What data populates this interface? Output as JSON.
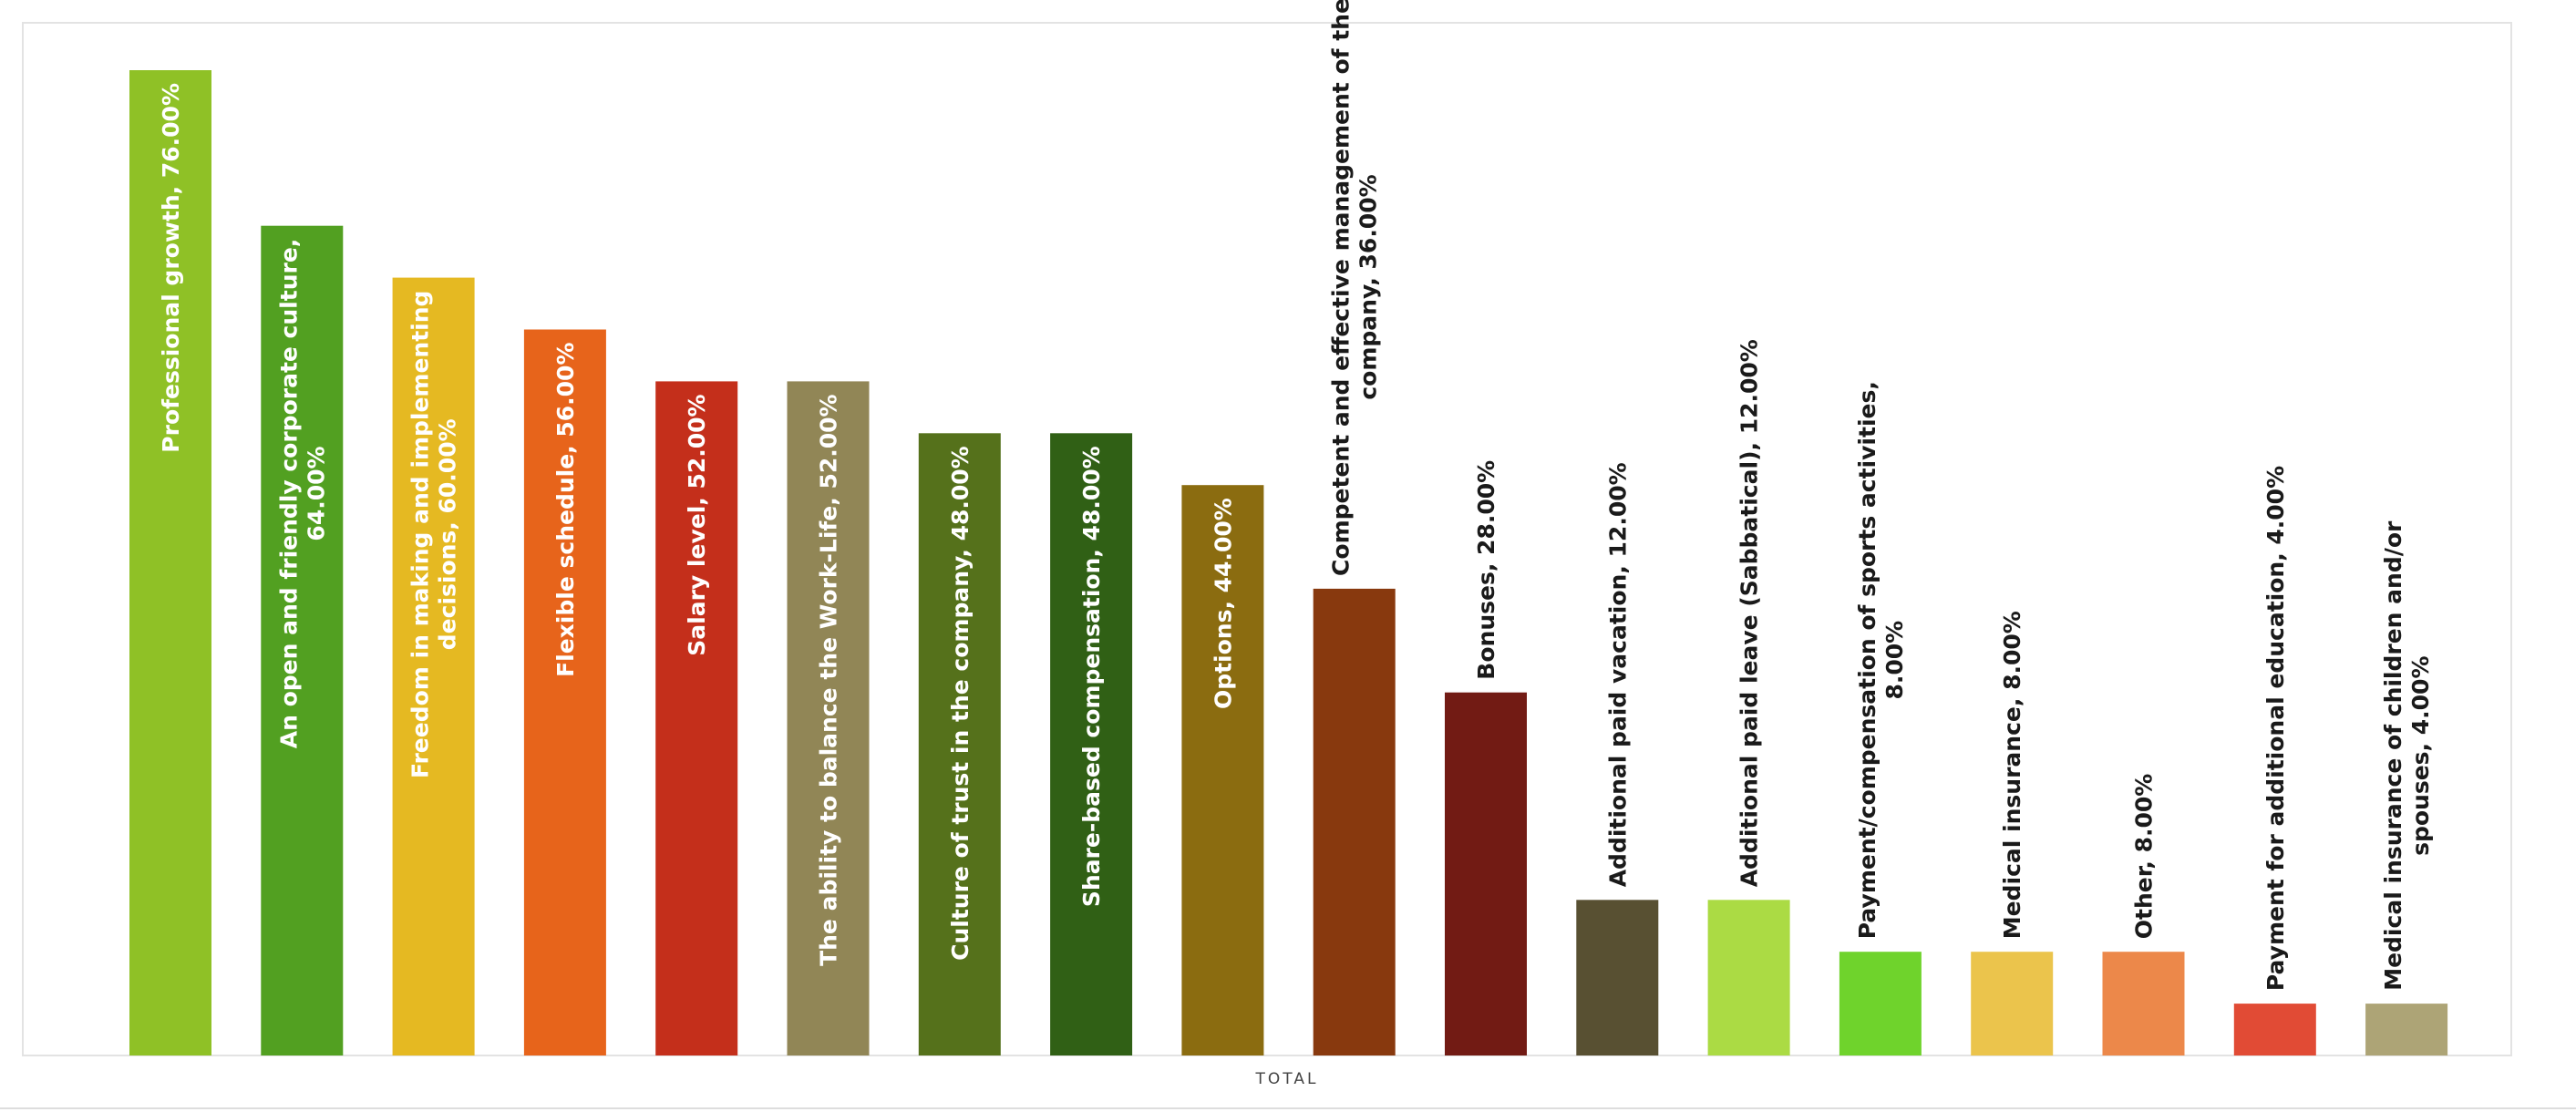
{
  "chart_data": {
    "type": "bar",
    "xlabel": "TOTAL",
    "ylabel": "",
    "ylim": [
      0,
      76
    ],
    "grid": false,
    "legend": "none",
    "categories": [
      "Professional growth",
      "An open and friendly corporate culture",
      "Freedom in making and implementing decisions",
      "Flexible schedule",
      "Salary level",
      "The ability to balance the Work-Life",
      "Culture of trust in the company",
      "Share-based compensation",
      "Options",
      "Competent and effective management of the company",
      "Bonuses",
      "Additional paid vacation",
      "Additional paid leave (Sabbatical)",
      "Payment/compensation of sports activities",
      "Medical insurance",
      "Other",
      "Payment for additional education",
      "Medical insurance of children and/or spouses"
    ],
    "values": [
      76,
      64,
      60,
      56,
      52,
      52,
      48,
      48,
      44,
      36,
      28,
      12,
      12,
      8,
      8,
      8,
      4,
      4
    ],
    "data_labels": [
      [
        "Professional growth, 76.00%"
      ],
      [
        "An open and friendly corporate culture,",
        "64.00%"
      ],
      [
        "Freedom in making and implementing",
        "decisions, 60.00%"
      ],
      [
        "Flexible schedule, 56.00%"
      ],
      [
        "Salary level, 52.00%"
      ],
      [
        "The ability to balance the Work-Life, 52.00%"
      ],
      [
        "Culture of trust in the company, 48.00%"
      ],
      [
        "Share-based compensation, 48.00%"
      ],
      [
        "Options, 44.00%"
      ],
      [
        "Competent and effective management of the",
        "company, 36.00%"
      ],
      [
        "Bonuses, 28.00%"
      ],
      [
        "Additional paid vacation, 12.00%"
      ],
      [
        "Additional paid leave (Sabbatical), 12.00%"
      ],
      [
        "Payment/compensation of sports activities,",
        "8.00%"
      ],
      [
        "Medical insurance, 8.00%"
      ],
      [
        "Other, 8.00%"
      ],
      [
        "Payment for additional education, 4.00%"
      ],
      [
        "Medical insurance of children and/or",
        "spouses, 4.00%"
      ]
    ],
    "colors": [
      "#8fc126",
      "#52a021",
      "#e5b922",
      "#e7641b",
      "#c42f1b",
      "#918656",
      "#55711b",
      "#306015",
      "#8b6c10",
      "#88390e",
      "#721b14",
      "#585032",
      "#abdb44",
      "#6fd32c",
      "#ebc44c",
      "#ec884a",
      "#e14b35",
      "#ada476"
    ]
  }
}
